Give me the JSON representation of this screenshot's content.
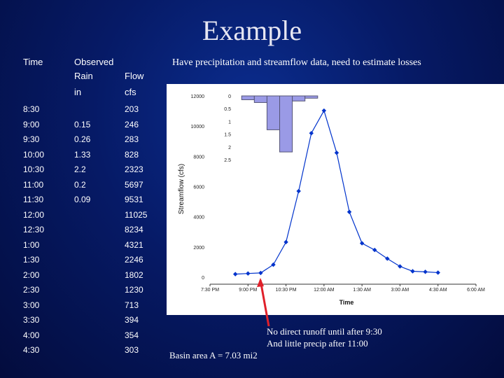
{
  "title": "Example",
  "subtitle": "Have precipitation and streamflow data, need to estimate losses",
  "table": {
    "headers": {
      "time": "Time",
      "observed": "Observed",
      "rain": "Rain",
      "flow": "Flow",
      "rain_unit": "in",
      "flow_unit": "cfs"
    },
    "rows": [
      {
        "time": "8:30",
        "rain": "",
        "flow": "203"
      },
      {
        "time": "9:00",
        "rain": "0.15",
        "flow": "246"
      },
      {
        "time": "9:30",
        "rain": "0.26",
        "flow": "283"
      },
      {
        "time": "10:00",
        "rain": "1.33",
        "flow": "828"
      },
      {
        "time": "10:30",
        "rain": "2.2",
        "flow": "2323"
      },
      {
        "time": "11:00",
        "rain": "0.2",
        "flow": "5697"
      },
      {
        "time": "11:30",
        "rain": "0.09",
        "flow": "9531"
      },
      {
        "time": "12:00",
        "rain": "",
        "flow": "11025"
      },
      {
        "time": "12:30",
        "rain": "",
        "flow": "8234"
      },
      {
        "time": "1:00",
        "rain": "",
        "flow": "4321"
      },
      {
        "time": "1:30",
        "rain": "",
        "flow": "2246"
      },
      {
        "time": "2:00",
        "rain": "",
        "flow": "1802"
      },
      {
        "time": "2:30",
        "rain": "",
        "flow": "1230"
      },
      {
        "time": "3:00",
        "rain": "",
        "flow": "713"
      },
      {
        "time": "3:30",
        "rain": "",
        "flow": "394"
      },
      {
        "time": "4:00",
        "rain": "",
        "flow": "354"
      },
      {
        "time": "4:30",
        "rain": "",
        "flow": "303"
      }
    ]
  },
  "chart_data": {
    "type": "line",
    "xlabel": "Time",
    "ylabel": "Streamflow (cfs)",
    "x_tick_labels": [
      "7:30 PM",
      "9:00 PM",
      "10:30 PM",
      "12:00 AM",
      "1:30 AM",
      "3:00 AM",
      "4:30 AM",
      "6:00 AM"
    ],
    "y_ticks": [
      0,
      2000,
      4000,
      6000,
      8000,
      10000,
      12000
    ],
    "ylim": [
      0,
      12000
    ],
    "precip_ticks": [
      0,
      0.5,
      1,
      1.5,
      2,
      2.5
    ],
    "precip_ylim": [
      0,
      2.5
    ],
    "series": [
      {
        "values": [
          {
            "x": "8:30 PM",
            "y": 203
          },
          {
            "x": "9:00 PM",
            "y": 246
          },
          {
            "x": "9:30 PM",
            "y": 283
          },
          {
            "x": "10:00 PM",
            "y": 828
          },
          {
            "x": "10:30 PM",
            "y": 2323
          },
          {
            "x": "11:00 PM",
            "y": 5697
          },
          {
            "x": "11:30 PM",
            "y": 9531
          },
          {
            "x": "12:00 AM",
            "y": 11025
          },
          {
            "x": "12:30 AM",
            "y": 8234
          },
          {
            "x": "1:00 AM",
            "y": 4321
          },
          {
            "x": "1:30 AM",
            "y": 2246
          },
          {
            "x": "2:00 AM",
            "y": 1802
          },
          {
            "x": "2:30 AM",
            "y": 1230
          },
          {
            "x": "3:00 AM",
            "y": 713
          },
          {
            "x": "3:30 AM",
            "y": 394
          },
          {
            "x": "4:00 AM",
            "y": 354
          },
          {
            "x": "4:30 AM",
            "y": 303
          }
        ],
        "color": "#0033cc"
      }
    ],
    "precip_bars": [
      {
        "x": "9:00 PM",
        "value": 0.15
      },
      {
        "x": "9:30 PM",
        "value": 0.26
      },
      {
        "x": "10:00 PM",
        "value": 1.33
      },
      {
        "x": "10:30 PM",
        "value": 2.2
      },
      {
        "x": "11:00 PM",
        "value": 0.2
      },
      {
        "x": "11:30 PM",
        "value": 0.09
      }
    ],
    "precip_color": "#9a9ae6",
    "grid": false
  },
  "annotations": {
    "note_line1": "No direct runoff until after 9:30",
    "note_line2": "And little precip after 11:00",
    "basin": "Basin area A = 7.03 mi2",
    "arrow_color": "#e0202a"
  }
}
